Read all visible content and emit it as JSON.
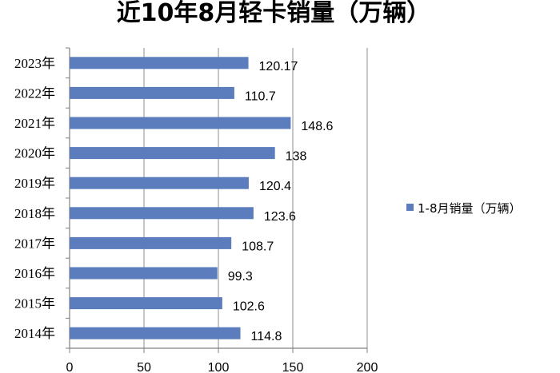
{
  "chart_data": {
    "type": "bar",
    "orientation": "horizontal",
    "title": "近10年8月轻卡销量（万辆）",
    "categories": [
      "2023年",
      "2022年",
      "2021年",
      "2020年",
      "2019年",
      "2018年",
      "2017年",
      "2016年",
      "2015年",
      "2014年"
    ],
    "series": [
      {
        "name": "1-8月销量（万辆）",
        "values": [
          120.17,
          110.7,
          148.6,
          138,
          120.4,
          123.6,
          108.7,
          99.3,
          102.6,
          114.8
        ],
        "labels": [
          "120.17",
          "110.7",
          "148.6",
          "138",
          "120.4",
          "123.6",
          "108.7",
          "99.3",
          "102.6",
          "114.8"
        ]
      }
    ],
    "xlim": [
      0,
      200
    ],
    "xticks": [
      0,
      50,
      100,
      150,
      200
    ],
    "grid": true,
    "legend_position": "right",
    "bar_color": "#5B7DBE"
  }
}
